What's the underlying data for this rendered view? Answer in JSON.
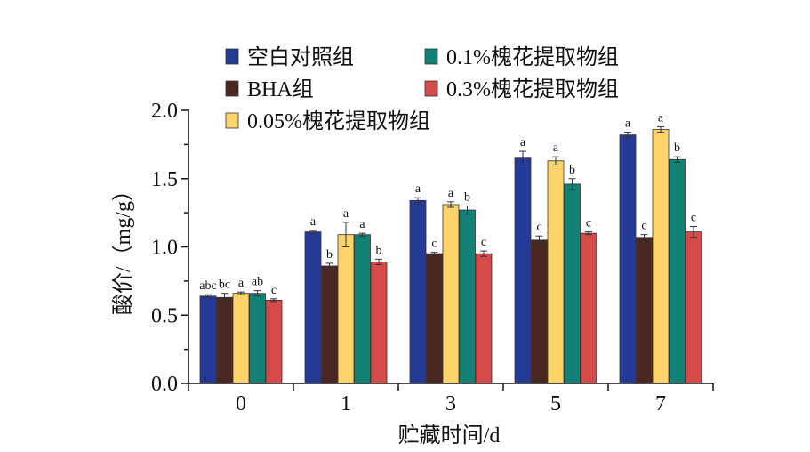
{
  "chart_data": {
    "type": "bar",
    "xlabel": "贮藏时间/d",
    "ylabel": "酸价/（mg/g）",
    "ylim": [
      0,
      2.0
    ],
    "yticks": [
      "0.0",
      "0.5",
      "1.0",
      "1.5",
      "2.0"
    ],
    "categories": [
      "0",
      "1",
      "3",
      "5",
      "7"
    ],
    "legend_position": "top-right",
    "grid": false,
    "series": [
      {
        "name": "空白对照组",
        "color": "#253a94",
        "values": [
          0.64,
          1.11,
          1.34,
          1.65,
          1.82
        ],
        "errors": [
          0.01,
          0.01,
          0.02,
          0.05,
          0.02
        ],
        "labels": [
          "abc",
          "a",
          "a",
          "a",
          "a"
        ]
      },
      {
        "name": "BHA组",
        "color": "#4a2822",
        "values": [
          0.63,
          0.86,
          0.95,
          1.05,
          1.07
        ],
        "errors": [
          0.03,
          0.02,
          0.01,
          0.03,
          0.02
        ],
        "labels": [
          "bc",
          "b",
          "c",
          "c",
          "c"
        ]
      },
      {
        "name": "0.05%槐花提取物组",
        "color": "#fcd46a",
        "values": [
          0.66,
          1.09,
          1.31,
          1.63,
          1.86
        ],
        "errors": [
          0.01,
          0.09,
          0.02,
          0.03,
          0.02
        ],
        "labels": [
          "a",
          "a",
          "a",
          "a",
          "a"
        ]
      },
      {
        "name": "0.1%槐花提取物组",
        "color": "#128276",
        "values": [
          0.66,
          1.09,
          1.27,
          1.46,
          1.64
        ],
        "errors": [
          0.02,
          0.01,
          0.03,
          0.04,
          0.02
        ],
        "labels": [
          "ab",
          "a",
          "b",
          "b",
          "b"
        ]
      },
      {
        "name": "0.3%槐花提取物组",
        "color": "#d44b4a",
        "values": [
          0.61,
          0.89,
          0.95,
          1.1,
          1.11
        ],
        "errors": [
          0.01,
          0.02,
          0.02,
          0.01,
          0.04
        ],
        "labels": [
          "c",
          "b",
          "c",
          "c",
          "c"
        ]
      }
    ]
  }
}
